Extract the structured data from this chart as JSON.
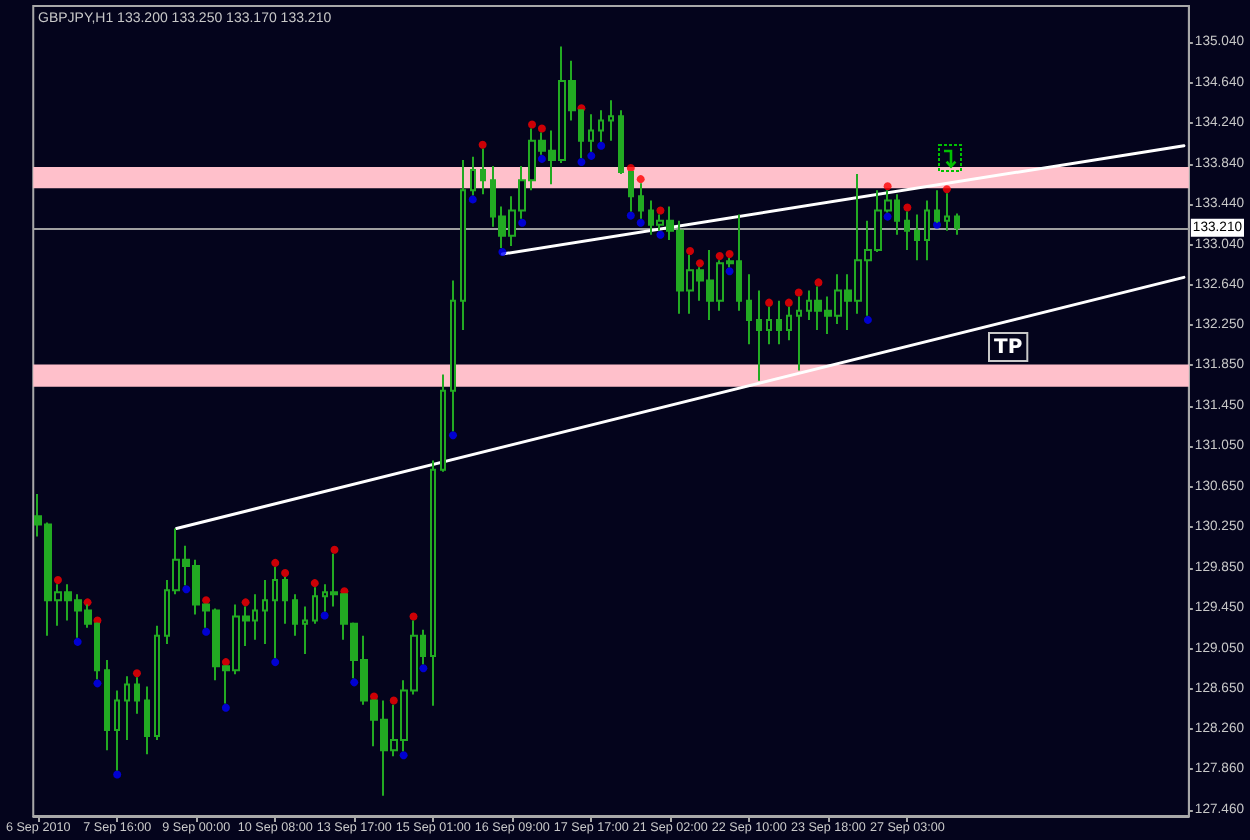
{
  "chart_data": {
    "type": "candlestick",
    "title": "GBPJPY,H1 133.200 133.250 133.170 133.210",
    "annotations": [
      "TP"
    ],
    "categories": [
      "6 Sep 2010",
      null,
      null,
      null,
      null,
      null,
      null,
      null,
      "7 Sep 16:00",
      null,
      null,
      null,
      null,
      null,
      null,
      null,
      "9 Sep 00:00",
      null,
      null,
      null,
      null,
      null,
      null,
      null,
      "10 Sep 08:00",
      null,
      null,
      null,
      null,
      null,
      null,
      null,
      "13 Sep 17:00",
      null,
      null,
      null,
      null,
      null,
      null,
      null,
      "15 Sep 01:00",
      null,
      null,
      null,
      null,
      null,
      null,
      null,
      "16 Sep 09:00",
      null,
      null,
      null,
      null,
      null,
      null,
      null,
      "17 Sep 17:00",
      null,
      null,
      null,
      null,
      null,
      null,
      null,
      "21 Sep 02:00",
      null,
      null,
      null,
      null,
      null,
      null,
      null,
      "22 Sep 10:00",
      null,
      null,
      null,
      null,
      null,
      null,
      null,
      "23 Sep 18:00",
      null,
      null,
      null,
      null,
      null,
      null,
      null,
      "27 Sep 03:00",
      null,
      null,
      null,
      null,
      null,
      null,
      null,
      null,
      null,
      null,
      null,
      null,
      null,
      null,
      null,
      null,
      null,
      null,
      null,
      null,
      null,
      null,
      null,
      null,
      null,
      null,
      null,
      null
    ],
    "color": "#22aa22",
    "ohlc": [
      [
        130.36,
        130.58,
        130.16,
        130.28
      ],
      [
        130.28,
        130.3,
        129.18,
        129.53
      ],
      [
        129.53,
        129.69,
        129.28,
        129.61
      ],
      [
        129.61,
        129.69,
        129.33,
        129.53
      ],
      [
        129.53,
        129.59,
        129.16,
        129.43
      ],
      [
        129.43,
        129.49,
        129.26,
        129.3
      ],
      [
        129.3,
        129.31,
        128.75,
        128.84
      ],
      [
        128.84,
        128.94,
        128.05,
        128.25
      ],
      [
        128.25,
        128.64,
        127.85,
        128.54
      ],
      [
        128.54,
        128.78,
        128.15,
        128.7
      ],
      [
        128.7,
        128.77,
        128.41,
        128.54
      ],
      [
        128.54,
        128.68,
        128.01,
        128.19
      ],
      [
        128.19,
        129.28,
        128.15,
        129.18
      ],
      [
        129.18,
        129.73,
        129.1,
        129.63
      ],
      [
        129.63,
        130.24,
        129.59,
        129.93
      ],
      [
        129.93,
        130.07,
        129.68,
        129.87
      ],
      [
        129.87,
        129.93,
        129.39,
        129.49
      ],
      [
        129.49,
        129.5,
        129.26,
        129.43
      ],
      [
        129.43,
        129.45,
        128.74,
        128.88
      ],
      [
        128.88,
        128.89,
        128.51,
        128.84
      ],
      [
        128.84,
        129.49,
        128.8,
        129.37
      ],
      [
        129.37,
        129.47,
        129.08,
        129.33
      ],
      [
        129.33,
        129.59,
        129.14,
        129.43
      ],
      [
        129.43,
        129.73,
        129.1,
        129.53
      ],
      [
        129.53,
        129.86,
        128.96,
        129.73
      ],
      [
        129.73,
        129.76,
        129.3,
        129.53
      ],
      [
        129.53,
        129.59,
        129.18,
        129.3
      ],
      [
        129.3,
        129.47,
        129.0,
        129.33
      ],
      [
        129.33,
        129.66,
        129.3,
        129.57
      ],
      [
        129.57,
        129.69,
        129.42,
        129.61
      ],
      [
        129.61,
        129.99,
        129.47,
        129.59
      ],
      [
        129.59,
        129.6,
        129.14,
        129.3
      ],
      [
        129.3,
        129.31,
        128.76,
        128.94
      ],
      [
        128.94,
        129.18,
        128.5,
        128.54
      ],
      [
        128.54,
        128.55,
        128.09,
        128.35
      ],
      [
        128.35,
        128.54,
        127.6,
        128.05
      ],
      [
        128.05,
        128.5,
        127.99,
        128.15
      ],
      [
        128.15,
        128.74,
        128.04,
        128.64
      ],
      [
        128.64,
        129.33,
        128.6,
        129.18
      ],
      [
        129.18,
        129.24,
        128.9,
        128.98
      ],
      [
        128.98,
        130.91,
        128.49,
        130.82
      ],
      [
        130.82,
        131.76,
        130.8,
        131.6
      ],
      [
        131.6,
        132.69,
        131.2,
        132.49
      ],
      [
        132.49,
        133.88,
        132.2,
        133.58
      ],
      [
        133.58,
        133.91,
        133.53,
        133.78
      ],
      [
        133.78,
        133.99,
        133.54,
        133.68
      ],
      [
        133.68,
        133.82,
        133.22,
        133.32
      ],
      [
        133.32,
        133.42,
        133.01,
        133.13
      ],
      [
        133.13,
        133.52,
        133.03,
        133.38
      ],
      [
        133.38,
        133.82,
        133.3,
        133.68
      ],
      [
        133.68,
        134.19,
        133.58,
        134.07
      ],
      [
        134.07,
        134.15,
        133.93,
        133.97
      ],
      [
        133.97,
        134.17,
        133.64,
        133.88
      ],
      [
        133.88,
        135.0,
        133.85,
        134.66
      ],
      [
        134.66,
        134.86,
        134.27,
        134.37
      ],
      [
        134.37,
        134.38,
        133.9,
        134.07
      ],
      [
        134.07,
        134.33,
        133.96,
        134.17
      ],
      [
        134.17,
        134.37,
        134.06,
        134.27
      ],
      [
        134.27,
        134.47,
        134.07,
        134.31
      ],
      [
        134.31,
        134.37,
        133.74,
        133.76
      ],
      [
        133.76,
        133.77,
        133.37,
        133.52
      ],
      [
        133.52,
        133.65,
        133.3,
        133.38
      ],
      [
        133.38,
        133.48,
        133.14,
        133.24
      ],
      [
        133.24,
        133.34,
        133.18,
        133.28
      ],
      [
        133.28,
        133.42,
        133.09,
        133.18
      ],
      [
        133.18,
        133.28,
        132.36,
        132.59
      ],
      [
        132.59,
        132.94,
        132.36,
        132.79
      ],
      [
        132.79,
        132.82,
        132.49,
        132.69
      ],
      [
        132.69,
        132.99,
        132.3,
        132.49
      ],
      [
        132.49,
        132.89,
        132.39,
        132.86
      ],
      [
        132.86,
        132.91,
        132.82,
        132.88
      ],
      [
        132.88,
        133.34,
        132.39,
        132.49
      ],
      [
        132.49,
        132.75,
        132.06,
        132.3
      ],
      [
        132.3,
        132.59,
        131.7,
        132.2
      ],
      [
        132.2,
        132.43,
        132.06,
        132.3
      ],
      [
        132.3,
        132.49,
        132.06,
        132.2
      ],
      [
        132.2,
        132.43,
        132.1,
        132.34
      ],
      [
        132.34,
        132.53,
        131.8,
        132.39
      ],
      [
        132.39,
        132.59,
        132.3,
        132.49
      ],
      [
        132.49,
        132.63,
        132.2,
        132.39
      ],
      [
        132.39,
        132.53,
        132.16,
        132.34
      ],
      [
        132.34,
        132.75,
        132.26,
        132.59
      ],
      [
        132.59,
        132.75,
        132.2,
        132.49
      ],
      [
        132.49,
        133.74,
        132.36,
        132.89
      ],
      [
        132.89,
        133.28,
        132.34,
        132.99
      ],
      [
        132.99,
        133.58,
        132.97,
        133.38
      ],
      [
        133.38,
        133.58,
        133.36,
        133.48
      ],
      [
        133.48,
        133.54,
        133.14,
        133.28
      ],
      [
        133.28,
        133.37,
        132.99,
        133.18
      ],
      [
        133.18,
        133.34,
        132.89,
        133.09
      ],
      [
        133.09,
        133.48,
        132.89,
        133.38
      ],
      [
        133.38,
        133.58,
        133.26,
        133.28
      ],
      [
        133.28,
        133.55,
        133.18,
        133.32
      ],
      [
        133.32,
        133.35,
        133.14,
        133.21
      ],
      null,
      null,
      null,
      null,
      null,
      null,
      null,
      null,
      null,
      null,
      null,
      null,
      null,
      null,
      null,
      null,
      null,
      null,
      null,
      null,
      null,
      null,
      null
    ],
    "series": [
      {
        "type": "scatter",
        "color": "#ff0000",
        "marker": "circle",
        "values": [
          null,
          null,
          129.73,
          null,
          null,
          129.51,
          129.33,
          null,
          null,
          null,
          128.81,
          null,
          null,
          null,
          null,
          null,
          null,
          129.53,
          null,
          128.92,
          null,
          129.51,
          null,
          null,
          129.9,
          129.8,
          null,
          null,
          129.7,
          null,
          130.03,
          129.62,
          null,
          null,
          128.58,
          null,
          128.54,
          null,
          129.37,
          null,
          null,
          null,
          null,
          null,
          null,
          134.03,
          null,
          null,
          null,
          null,
          134.23,
          134.19,
          null,
          null,
          null,
          134.39,
          null,
          null,
          null,
          null,
          133.8,
          133.69,
          null,
          133.38,
          null,
          null,
          132.98,
          132.86,
          null,
          132.93,
          132.95,
          null,
          null,
          null,
          132.47,
          null,
          132.47,
          132.57,
          null,
          132.67,
          null,
          null,
          null,
          null,
          null,
          null,
          133.62,
          null,
          133.41,
          null,
          null,
          null,
          133.59,
          null,
          null,
          null,
          null,
          null,
          null,
          null,
          null,
          null,
          null,
          null,
          null,
          null,
          null,
          null,
          null,
          null,
          null,
          null,
          null,
          null,
          null,
          null,
          null
        ]
      },
      {
        "type": "scatter",
        "color": "#0000ff",
        "marker": "circle",
        "values": [
          null,
          null,
          null,
          null,
          129.12,
          null,
          128.71,
          null,
          127.81,
          null,
          null,
          null,
          null,
          null,
          null,
          129.64,
          null,
          129.22,
          null,
          128.47,
          null,
          null,
          null,
          null,
          128.92,
          null,
          null,
          null,
          null,
          129.38,
          null,
          null,
          128.72,
          null,
          null,
          null,
          null,
          128.0,
          null,
          128.86,
          null,
          null,
          131.16,
          null,
          133.49,
          null,
          null,
          132.97,
          null,
          133.26,
          null,
          133.89,
          null,
          null,
          null,
          133.86,
          133.92,
          134.02,
          null,
          null,
          133.33,
          133.26,
          null,
          133.14,
          null,
          null,
          null,
          null,
          null,
          null,
          132.78,
          null,
          null,
          null,
          null,
          null,
          null,
          null,
          null,
          null,
          null,
          null,
          null,
          null,
          132.3,
          null,
          133.32,
          null,
          null,
          null,
          null,
          133.24,
          null,
          null,
          null,
          null,
          null,
          null,
          null,
          null,
          null,
          null,
          null,
          null,
          null,
          null,
          null,
          null,
          null,
          null,
          null,
          null,
          null,
          null,
          null,
          null,
          null
        ]
      },
      {
        "type": "line",
        "color": "#ffffff",
        "values": [
          null,
          null,
          null,
          null,
          null,
          null,
          null,
          null,
          null,
          null,
          null,
          null,
          null,
          null,
          130.24,
          null,
          null,
          null,
          null,
          null,
          null,
          null,
          null,
          null,
          null,
          null,
          null,
          null,
          null,
          null,
          null,
          null,
          null,
          null,
          null,
          null,
          null,
          null,
          null,
          null,
          null,
          null,
          null,
          null,
          null,
          null,
          null,
          null,
          null,
          null,
          null,
          null,
          null,
          null,
          null,
          null,
          null,
          null,
          null,
          null,
          null,
          null,
          null,
          null,
          null,
          null,
          null,
          null,
          null,
          null,
          null,
          null,
          null,
          null,
          null,
          null,
          null,
          null,
          null,
          null,
          null,
          null,
          null,
          null,
          null,
          null,
          null,
          null,
          null,
          null,
          null,
          null,
          null,
          null,
          null,
          null,
          null,
          null,
          null,
          null,
          null,
          null,
          null,
          null,
          null,
          null,
          null,
          null,
          null,
          null,
          null,
          null,
          null,
          null,
          null,
          null,
          132.72
        ]
      },
      {
        "type": "line",
        "color": "#ffffff",
        "values": [
          null,
          null,
          null,
          null,
          null,
          null,
          null,
          null,
          null,
          null,
          null,
          null,
          null,
          null,
          null,
          null,
          null,
          null,
          null,
          null,
          null,
          null,
          null,
          null,
          null,
          null,
          null,
          null,
          null,
          null,
          null,
          null,
          null,
          null,
          null,
          null,
          null,
          null,
          null,
          null,
          null,
          null,
          null,
          null,
          null,
          null,
          null,
          132.95,
          null,
          null,
          null,
          null,
          null,
          null,
          null,
          null,
          null,
          null,
          null,
          null,
          null,
          null,
          null,
          null,
          null,
          null,
          null,
          null,
          null,
          null,
          null,
          null,
          null,
          null,
          null,
          null,
          null,
          null,
          null,
          null,
          null,
          null,
          null,
          null,
          null,
          null,
          null,
          null,
          null,
          null,
          null,
          null,
          null,
          null,
          null,
          null,
          null,
          null,
          null,
          null,
          null,
          null,
          null,
          null,
          null,
          null,
          null,
          null,
          null,
          null,
          null,
          null,
          null,
          null,
          null,
          null,
          134.02
        ]
      }
    ],
    "ylim": [
      127.4,
      135.4
    ],
    "yticks": [
      {
        "value": 135.04,
        "label": "135.040"
      },
      {
        "value": 134.64,
        "label": "134.640"
      },
      {
        "value": 134.24,
        "label": "134.240"
      },
      {
        "value": 133.84,
        "label": "133.840"
      },
      {
        "value": 133.44,
        "label": "133.440"
      },
      {
        "value": 133.04,
        "label": "133.040"
      },
      {
        "value": 132.64,
        "label": "132.640"
      },
      {
        "value": 132.25,
        "label": "132.250"
      },
      {
        "value": 131.85,
        "label": "131.850"
      },
      {
        "value": 131.45,
        "label": "131.450"
      },
      {
        "value": 131.05,
        "label": "131.050"
      },
      {
        "value": 130.65,
        "label": "130.650"
      },
      {
        "value": 130.25,
        "label": "130.250"
      },
      {
        "value": 129.85,
        "label": "129.850"
      },
      {
        "value": 129.45,
        "label": "129.450"
      },
      {
        "value": 129.05,
        "label": "129.050"
      },
      {
        "value": 128.65,
        "label": "128.650"
      },
      {
        "value": 128.26,
        "label": "128.260"
      },
      {
        "value": 127.86,
        "label": "127.860"
      },
      {
        "value": 127.46,
        "label": "127.460"
      }
    ],
    "ref_lines": [
      {
        "axis": "y",
        "value": 133.21,
        "label": "133.210",
        "color": "#a0a0a0"
      }
    ],
    "bands": [
      {
        "axis": "y",
        "from": 133.6,
        "to": 133.81,
        "color": "#ffc0cb"
      },
      {
        "axis": "y",
        "from": 131.64,
        "to": 131.86,
        "color": "#ffc0cb"
      }
    ]
  }
}
